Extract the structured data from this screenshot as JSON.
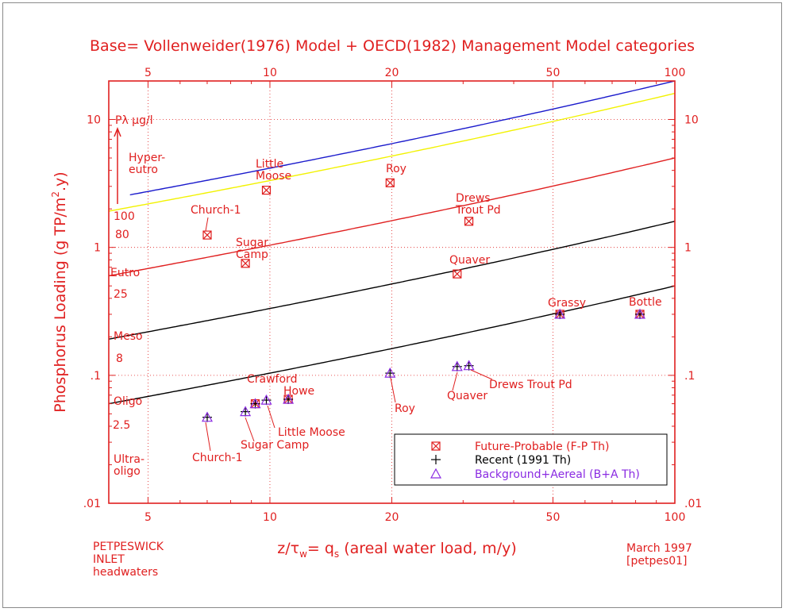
{
  "chart_data": {
    "type": "scatter",
    "title": "Base= Vollenweider(1976) Model + OECD(1982) Management Model categories",
    "xlabel": "z/τw= qs (areal water load, m/y)",
    "xlabel_parts": {
      "z": "z/τ",
      "sub": "w",
      "eq": "= q",
      "sub2": "s",
      "rest": " (areal water load, m/y)"
    },
    "ylabel": "Phosphorus Loading (g TP/m².y)",
    "ylabel_parts": {
      "a": "Phosphorus Loading (g TP/m",
      "sup": "2",
      "b": ".y)"
    },
    "xscale": "log",
    "yscale": "log",
    "xlim": [
      4,
      100
    ],
    "ylim": [
      0.01,
      20
    ],
    "x_ticks": [
      5,
      10,
      20,
      50,
      100
    ],
    "x_tick_labels": [
      "5",
      "10",
      "20",
      "50",
      "100"
    ],
    "y_ticks": [
      0.01,
      0.1,
      1,
      10
    ],
    "y_tick_labels": [
      ".01",
      ".1",
      "1",
      "10"
    ],
    "grid": true,
    "concentration_note": "Pλ  µg/l",
    "threshold_curves": [
      {
        "name": "100",
        "color": "#1a1acc",
        "P_ug_l": 100
      },
      {
        "name": "80",
        "color": "#f2f200",
        "P_ug_l": 80
      },
      {
        "name": "25",
        "color": "#e02020",
        "P_ug_l": 25
      },
      {
        "name": "8",
        "color": "#000000",
        "P_ug_l": 8
      },
      {
        "name": "2.5",
        "color": "#000000",
        "P_ug_l": 2.5
      }
    ],
    "trophic_categories": [
      {
        "label": "Hyper-\neutro",
        "curve": "100"
      },
      {
        "label": "Eutro",
        "curve": "25"
      },
      {
        "label": "Meso",
        "curve": "8"
      },
      {
        "label": "Oligo",
        "curve": "2.5"
      },
      {
        "label": "Ultra-\noligo",
        "curve": null
      }
    ],
    "series": [
      {
        "name": "Future-Probable (F-P Th)",
        "marker": "boxed-x",
        "color": "#e02020",
        "points": [
          {
            "label": "Church-1",
            "x": 7.0,
            "y": 1.25
          },
          {
            "label": "Sugar Camp",
            "x": 8.7,
            "y": 0.75
          },
          {
            "label": "Little Moose",
            "x": 9.8,
            "y": 2.8
          },
          {
            "label": "Roy",
            "x": 19.8,
            "y": 3.2
          },
          {
            "label": "Drews Trout Pd",
            "x": 31.0,
            "y": 1.6
          },
          {
            "label": "Quaver",
            "x": 29.0,
            "y": 0.62
          },
          {
            "label": "Grassy",
            "x": 52.0,
            "y": 0.3
          },
          {
            "label": "Bottle",
            "x": 82.0,
            "y": 0.3
          },
          {
            "label": "Crawford",
            "x": 9.2,
            "y": 0.06
          },
          {
            "label": "Howe",
            "x": 11.1,
            "y": 0.065
          }
        ]
      },
      {
        "name": "Recent (1991 Th)",
        "marker": "plus",
        "color": "#000000",
        "points": [
          {
            "label": "Grassy",
            "x": 52.0,
            "y": 0.3
          },
          {
            "label": "Bottle",
            "x": 82.0,
            "y": 0.3
          },
          {
            "label": "Crawford",
            "x": 9.2,
            "y": 0.06
          },
          {
            "label": "Howe",
            "x": 11.1,
            "y": 0.065
          },
          {
            "label": "Church-1",
            "x": 7.0,
            "y": 0.047
          },
          {
            "label": "Sugar Camp",
            "x": 8.7,
            "y": 0.052
          },
          {
            "label": "Little Moose",
            "x": 9.8,
            "y": 0.064
          },
          {
            "label": "Roy",
            "x": 19.8,
            "y": 0.104
          },
          {
            "label": "Quaver",
            "x": 29.0,
            "y": 0.117
          },
          {
            "label": "Drews Trout Pd",
            "x": 31.0,
            "y": 0.119
          }
        ]
      },
      {
        "name": "Background+Aereal (B+A Th)",
        "marker": "triangle",
        "color": "#8a2be2",
        "points": [
          {
            "label": "Church-1",
            "x": 7.0,
            "y": 0.047
          },
          {
            "label": "Sugar Camp",
            "x": 8.7,
            "y": 0.052
          },
          {
            "label": "Crawford",
            "x": 9.2,
            "y": 0.06
          },
          {
            "label": "Little Moose",
            "x": 9.8,
            "y": 0.064
          },
          {
            "label": "Howe",
            "x": 11.1,
            "y": 0.065
          },
          {
            "label": "Roy",
            "x": 19.8,
            "y": 0.104
          },
          {
            "label": "Quaver",
            "x": 29.0,
            "y": 0.117
          },
          {
            "label": "Drews Trout Pd",
            "x": 31.0,
            "y": 0.119
          },
          {
            "label": "Grassy",
            "x": 52.0,
            "y": 0.3
          },
          {
            "label": "Bottle",
            "x": 82.0,
            "y": 0.3
          }
        ]
      }
    ],
    "point_labels_upper": [
      {
        "text": "Church-1"
      },
      {
        "text": "Sugar\nCamp"
      },
      {
        "text": "Little\nMoose"
      },
      {
        "text": "Roy"
      },
      {
        "text": "Drews\nTrout Pd"
      },
      {
        "text": "Quaver"
      },
      {
        "text": "Grassy"
      },
      {
        "text": "Bottle"
      }
    ],
    "point_labels_lower": [
      {
        "text": "Crawford"
      },
      {
        "text": "Howe"
      },
      {
        "text": "Little Moose"
      },
      {
        "text": "Sugar Camp"
      },
      {
        "text": "Church-1"
      },
      {
        "text": "Roy"
      },
      {
        "text": "Quaver"
      },
      {
        "text": "Drews Trout Pd"
      }
    ],
    "legend": {
      "placement": "bottom-right",
      "entries": [
        "Future-Probable (F-P Th)",
        "Recent (1991 Th)",
        "Background+Aereal (B+A Th)"
      ]
    }
  },
  "footer": {
    "left": [
      "PETPESWICK",
      "INLET",
      "headwaters"
    ],
    "right": [
      "March 1997",
      "[petpes01]"
    ]
  }
}
